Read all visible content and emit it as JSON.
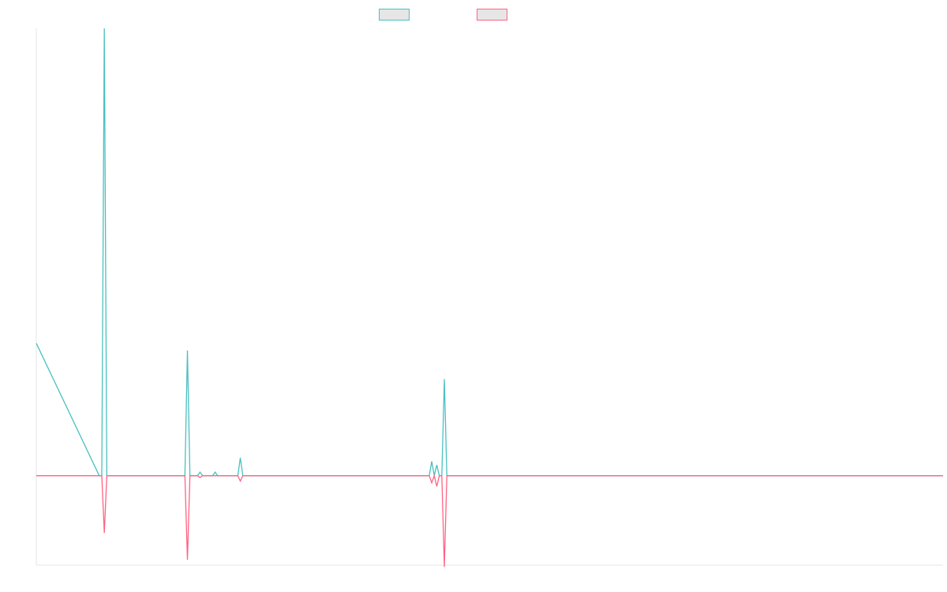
{
  "chart_data": {
    "type": "line",
    "title": "",
    "xlabel": "",
    "ylabel": "",
    "grid": false,
    "legend_position": "top-center",
    "x": [
      0,
      25,
      26,
      27,
      28,
      29,
      30,
      58,
      59,
      60,
      61,
      62,
      64,
      65,
      66,
      70,
      71,
      72,
      80,
      81,
      82,
      156,
      157,
      158,
      159,
      160,
      161,
      162,
      163,
      164,
      360
    ],
    "series": [
      {
        "name": "",
        "color": "#4bc0c0",
        "values": [
          3.7,
          0,
          0,
          12.5,
          0,
          0,
          0,
          0,
          0,
          3.5,
          0,
          0,
          0,
          0.1,
          0,
          0,
          0.1,
          0,
          0,
          0.5,
          0,
          0,
          0.4,
          0,
          0.3,
          0,
          0,
          2.7,
          0,
          0,
          0
        ]
      },
      {
        "name": "",
        "color": "#ff6384",
        "values": [
          0,
          0,
          0,
          -1.6,
          0,
          0,
          0,
          0,
          0,
          -2.35,
          0,
          0,
          0,
          -0.05,
          0,
          0,
          0,
          0,
          0,
          -0.15,
          0,
          0,
          -0.2,
          0,
          -0.3,
          0,
          0,
          -2.55,
          0,
          0,
          0
        ]
      }
    ],
    "xlim": [
      0,
      360
    ],
    "ylim": [
      -2.5,
      12.5
    ],
    "axis_color": "#e6e6e6"
  }
}
